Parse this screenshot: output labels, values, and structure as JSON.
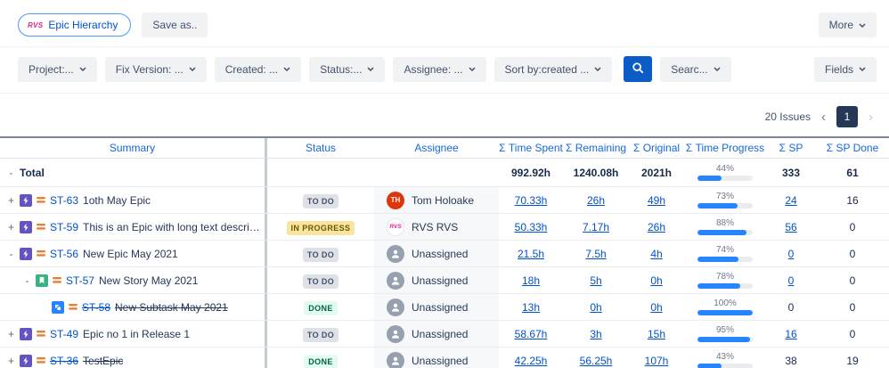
{
  "toolbar": {
    "app_chip_label": "Epic Hierarchy",
    "app_logo_text": "RVS",
    "save_as_label": "Save as..",
    "more_label": "More",
    "fields_label": "Fields"
  },
  "filters": [
    "Project:...",
    "Fix Version: ...",
    "Created: ...",
    "Status:...",
    "Assignee: ...",
    "Sort by:created ..."
  ],
  "search_chip_label": "Searc...",
  "issues_bar": {
    "count_label": "20 Issues",
    "page": "1",
    "prev": "‹",
    "next": "›"
  },
  "colors": {
    "accent_blue": "#0052CC",
    "header_blue": "#1868DB",
    "progress_bar": "#2684FF",
    "search_button": "#0B5CC7",
    "page_box": "#253858",
    "brand_pink": "#E5258C",
    "priority_orange": "#E97F33",
    "avatar_user": "#DE350B",
    "avatar_unassigned": "#97A0AF",
    "issue_types": {
      "epic": "#6554C0",
      "story": "#36B37E",
      "subtask": "#2684FF"
    },
    "status": {
      "todo_bg": "#DFE1E6",
      "inprogress_bg": "#F8E6A0",
      "done_text": "#006644"
    }
  },
  "table": {
    "headers": [
      "Summary",
      "Status",
      "Assignee",
      "Σ Time Spent",
      "Σ Remaining",
      "Σ Original",
      "Σ Time Progress",
      "Σ SP",
      "Σ SP Done"
    ],
    "total": {
      "expander": "-",
      "label": "Total",
      "time_spent": "992.92h",
      "remaining": "1240.08h",
      "original": "2021h",
      "progress": 44,
      "progress_label": "44%",
      "sp": "333",
      "sp_done": "61"
    },
    "rows": [
      {
        "indent": 0,
        "expander": "+",
        "type": "epic",
        "key": "ST-63",
        "summary": "1oth May Epic",
        "struck": false,
        "status": "TO DO",
        "status_kind": "todo",
        "assignee": {
          "kind": "user",
          "initials": "TH",
          "name": "Tom Holoake"
        },
        "time_spent": "70.33h",
        "remaining": "26h",
        "original": "49h",
        "progress": 73,
        "progress_label": "73%",
        "sp": "24",
        "sp_is_link": true,
        "sp_done": "16"
      },
      {
        "indent": 0,
        "expander": "+",
        "type": "epic",
        "key": "ST-59",
        "summary": "This is an Epic with long text description",
        "struck": false,
        "status": "IN PROGRESS",
        "status_kind": "inprogress",
        "assignee": {
          "kind": "logo",
          "label": "RVS",
          "name": "RVS RVS"
        },
        "time_spent": "50.33h",
        "remaining": "7.17h",
        "original": "26h",
        "progress": 88,
        "progress_label": "88%",
        "sp": "56",
        "sp_is_link": true,
        "sp_done": "0"
      },
      {
        "indent": 0,
        "expander": "-",
        "type": "epic",
        "key": "ST-56",
        "summary": "New Epic May 2021",
        "struck": false,
        "status": "TO DO",
        "status_kind": "todo",
        "assignee": {
          "kind": "unassigned",
          "name": "Unassigned"
        },
        "time_spent": "21.5h",
        "remaining": "7.5h",
        "original": "4h",
        "progress": 74,
        "progress_label": "74%",
        "sp": "0",
        "sp_is_link": true,
        "sp_done": "0"
      },
      {
        "indent": 1,
        "expander": "-",
        "type": "story",
        "key": "ST-57",
        "summary": "New Story May 2021",
        "struck": false,
        "status": "TO DO",
        "status_kind": "todo",
        "assignee": {
          "kind": "unassigned",
          "name": "Unassigned"
        },
        "time_spent": "18h",
        "remaining": "5h",
        "original": "0h",
        "progress": 78,
        "progress_label": "78%",
        "sp": "0",
        "sp_is_link": true,
        "sp_done": "0"
      },
      {
        "indent": 2,
        "expander": "",
        "type": "subtask",
        "key": "ST-58",
        "summary": "New Subtask May 2021",
        "struck": true,
        "status": "DONE",
        "status_kind": "done",
        "assignee": {
          "kind": "unassigned",
          "name": "Unassigned"
        },
        "time_spent": "13h",
        "remaining": "0h",
        "original": "0h",
        "progress": 100,
        "progress_label": "100%",
        "sp": "0",
        "sp_is_link": false,
        "sp_done": "0"
      },
      {
        "indent": 0,
        "expander": "+",
        "type": "epic",
        "key": "ST-49",
        "summary": "Epic no 1 in Release 1",
        "struck": false,
        "status": "TO DO",
        "status_kind": "todo",
        "assignee": {
          "kind": "unassigned",
          "name": "Unassigned"
        },
        "time_spent": "58.67h",
        "remaining": "3h",
        "original": "15h",
        "progress": 95,
        "progress_label": "95%",
        "sp": "16",
        "sp_is_link": true,
        "sp_done": "0"
      },
      {
        "indent": 0,
        "expander": "+",
        "type": "epic",
        "key": "ST-36",
        "summary": "TestEpic",
        "struck": true,
        "status": "DONE",
        "status_kind": "done",
        "assignee": {
          "kind": "unassigned",
          "name": "Unassigned"
        },
        "time_spent": "42.25h",
        "remaining": "56.25h",
        "original": "107h",
        "progress": 43,
        "progress_label": "43%",
        "sp": "38",
        "sp_is_link": false,
        "sp_done": "19"
      }
    ]
  }
}
